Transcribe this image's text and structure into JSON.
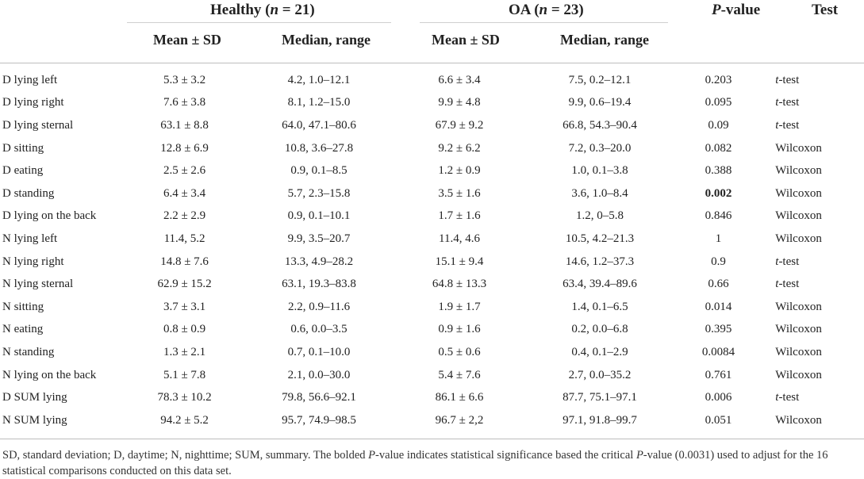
{
  "header": {
    "healthy_group": {
      "label": "Healthy (",
      "n_symbol": "n",
      "n_suffix": " = 21)"
    },
    "oa_group": {
      "label": "OA (",
      "n_symbol": "n",
      "n_suffix": " = 23)"
    },
    "pvalue": {
      "italic": "P",
      "suffix": "-value"
    },
    "test": "Test",
    "sub": {
      "healthy_mean": "Mean ± SD",
      "healthy_median": "Median, range",
      "oa_mean": "Mean ± SD",
      "oa_median": "Median, range"
    }
  },
  "rows": [
    {
      "label": "D lying left",
      "h_mean": "5.3 ± 3.2",
      "h_median": "4.2, 1.0–12.1",
      "o_mean": "6.6 ± 3.4",
      "o_median": "7.5, 0.2–12.1",
      "p": "0.203",
      "test_prefix": "t",
      "test_rest": "-test"
    },
    {
      "label": "D lying right",
      "h_mean": "7.6 ± 3.8",
      "h_median": "8.1, 1.2–15.0",
      "o_mean": "9.9 ± 4.8",
      "o_median": "9.9, 0.6–19.4",
      "p": "0.095",
      "test_prefix": "t",
      "test_rest": "-test"
    },
    {
      "label": "D lying sternal",
      "h_mean": "63.1 ± 8.8",
      "h_median": "64.0, 47.1–80.6",
      "o_mean": "67.9 ± 9.2",
      "o_median": "66.8, 54.3–90.4",
      "p": "0.09",
      "test_prefix": "t",
      "test_rest": "-test"
    },
    {
      "label": "D sitting",
      "h_mean": "12.8 ± 6.9",
      "h_median": "10.8, 3.6–27.8",
      "o_mean": "9.2 ± 6.2",
      "o_median": "7.2, 0.3–20.0",
      "p": "0.082",
      "test_prefix": "",
      "test_rest": "Wilcoxon"
    },
    {
      "label": "D eating",
      "h_mean": "2.5 ± 2.6",
      "h_median": "0.9, 0.1–8.5",
      "o_mean": "1.2 ± 0.9",
      "o_median": "1.0, 0.1–3.8",
      "p": "0.388",
      "test_prefix": "",
      "test_rest": "Wilcoxon"
    },
    {
      "label": "D standing",
      "h_mean": "6.4 ± 3.4",
      "h_median": "5.7, 2.3–15.8",
      "o_mean": "3.5 ± 1.6",
      "o_median": "3.6, 1.0–8.4",
      "p": "0.002",
      "p_bold": true,
      "test_prefix": "",
      "test_rest": "Wilcoxon"
    },
    {
      "label": "D lying on the back",
      "h_mean": "2.2 ± 2.9",
      "h_median": "0.9, 0.1–10.1",
      "o_mean": "1.7 ± 1.6",
      "o_median": "1.2, 0–5.8",
      "p": "0.846",
      "test_prefix": "",
      "test_rest": "Wilcoxon"
    },
    {
      "label": "N lying left",
      "h_mean": "11.4, 5.2",
      "h_median": "9.9, 3.5–20.7",
      "o_mean": "11.4, 4.6",
      "o_median": "10.5, 4.2–21.3",
      "p": "1",
      "test_prefix": "",
      "test_rest": "Wilcoxon"
    },
    {
      "label": "N lying right",
      "h_mean": "14.8 ± 7.6",
      "h_median": "13.3, 4.9–28.2",
      "o_mean": "15.1 ± 9.4",
      "o_median": "14.6, 1.2–37.3",
      "p": "0.9",
      "test_prefix": "t",
      "test_rest": "-test"
    },
    {
      "label": "N lying sternal",
      "h_mean": "62.9 ± 15.2",
      "h_median": "63.1, 19.3–83.8",
      "o_mean": "64.8 ± 13.3",
      "o_median": "63.4, 39.4–89.6",
      "p": "0.66",
      "test_prefix": "t",
      "test_rest": "-test"
    },
    {
      "label": "N sitting",
      "h_mean": "3.7 ± 3.1",
      "h_median": "2.2, 0.9–11.6",
      "o_mean": "1.9 ± 1.7",
      "o_median": "1.4, 0.1–6.5",
      "p": "0.014",
      "test_prefix": "",
      "test_rest": "Wilcoxon"
    },
    {
      "label": "N eating",
      "h_mean": "0.8 ± 0.9",
      "h_median": "0.6, 0.0–3.5",
      "o_mean": "0.9 ± 1.6",
      "o_median": "0.2, 0.0–6.8",
      "p": "0.395",
      "test_prefix": "",
      "test_rest": "Wilcoxon"
    },
    {
      "label": "N standing",
      "h_mean": "1.3 ± 2.1",
      "h_median": "0.7, 0.1–10.0",
      "o_mean": "0.5 ± 0.6",
      "o_median": "0.4, 0.1–2.9",
      "p": "0.0084",
      "test_prefix": "",
      "test_rest": "Wilcoxon"
    },
    {
      "label": "N lying on the back",
      "h_mean": "5.1 ± 7.8",
      "h_median": "2.1, 0.0–30.0",
      "o_mean": "5.4 ± 7.6",
      "o_median": "2.7, 0.0–35.2",
      "p": "0.761",
      "test_prefix": "",
      "test_rest": "Wilcoxon"
    },
    {
      "label": "D SUM lying",
      "h_mean": "78.3 ± 10.2",
      "h_median": "79.8, 56.6–92.1",
      "o_mean": "86.1 ± 6.6",
      "o_median": "87.7, 75.1–97.1",
      "p": "0.006",
      "test_prefix": "t",
      "test_rest": "-test"
    },
    {
      "label": "N SUM lying",
      "h_mean": "94.2 ± 5.2",
      "h_median": "95.7, 74.9–98.5",
      "o_mean": "96.7 ± 2,2",
      "o_median": "97.1, 91.8–99.7",
      "p": "0.051",
      "test_prefix": "",
      "test_rest": "Wilcoxon"
    }
  ],
  "footnote": {
    "part1": "SD, standard deviation; D, daytime; N, nighttime; SUM, summary. The bolded ",
    "p1": "P",
    "part2": "-value indicates statistical significance based the critical ",
    "p2": "P",
    "part3": "-value (0.0031) used to adjust for the 16 statistical comparisons conducted on this data set."
  }
}
